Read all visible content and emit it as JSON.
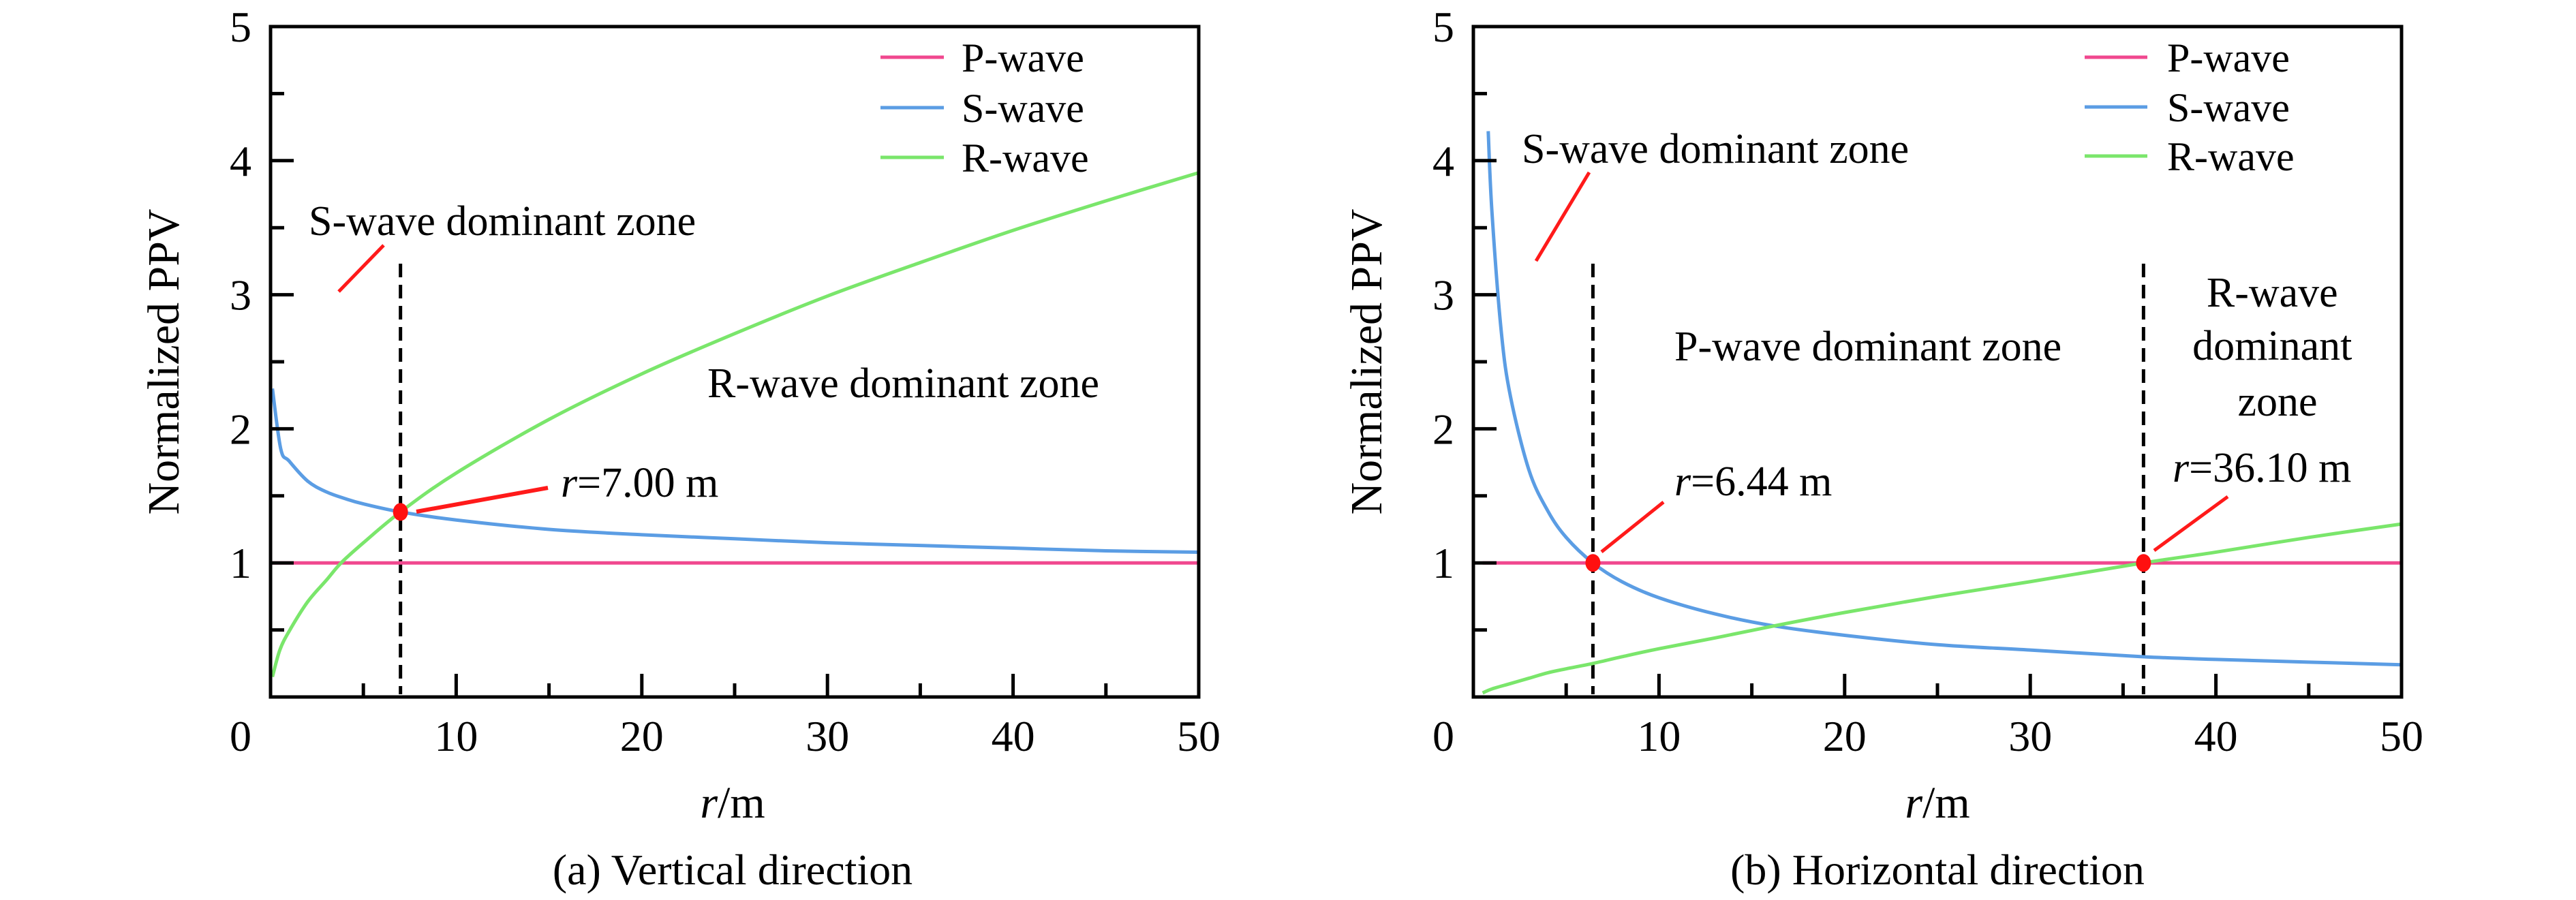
{
  "figure": {
    "caption_a": "(a) Vertical direction",
    "caption_b": "(b) Horizontal direction"
  },
  "chart_data": [
    {
      "type": "line",
      "panel": "a",
      "title": "(a) Vertical direction",
      "xlabel_italic": "r",
      "xlabel_unit": "/m",
      "ylabel": "Normalized PPV",
      "xlim": [
        0,
        50
      ],
      "ylim": [
        0,
        5
      ],
      "x_ticks": [
        "0",
        "10",
        "20",
        "30",
        "40",
        "50"
      ],
      "y_ticks": [
        "1",
        "2",
        "3",
        "4",
        "5"
      ],
      "x_tick_values": [
        0,
        10,
        20,
        30,
        40,
        50
      ],
      "y_tick_values": [
        1,
        2,
        3,
        4,
        5
      ],
      "x_minor_step": 5,
      "y_minor_step": 0.5,
      "grid": false,
      "legend_position": "top-right",
      "series": [
        {
          "name": "P-wave",
          "color": "#f0488f",
          "x": [
            0.1,
            50
          ],
          "y": [
            1.0,
            1.0
          ]
        },
        {
          "name": "S-wave",
          "color": "#5b9de4",
          "x": [
            0.1,
            0.55,
            1,
            2,
            3,
            4,
            5,
            7,
            10,
            15,
            20,
            25,
            30,
            35,
            40,
            45,
            50
          ],
          "y": [
            2.3,
            1.85,
            1.76,
            1.61,
            1.53,
            1.48,
            1.44,
            1.38,
            1.32,
            1.25,
            1.21,
            1.18,
            1.15,
            1.13,
            1.11,
            1.09,
            1.08
          ]
        },
        {
          "name": "R-wave",
          "color": "#7ae66b",
          "x": [
            0.1,
            0.5,
            1,
            2,
            3,
            3.8,
            5,
            7,
            10,
            15,
            20,
            25,
            30,
            35,
            40,
            45,
            50
          ],
          "y": [
            0.15,
            0.35,
            0.49,
            0.71,
            0.87,
            1.0,
            1.15,
            1.38,
            1.67,
            2.07,
            2.41,
            2.71,
            2.99,
            3.24,
            3.48,
            3.7,
            3.91
          ]
        }
      ],
      "markers": [
        {
          "x": 7.0,
          "y": 1.38,
          "label_italic": "r",
          "label_rest": "=7.00 m"
        }
      ],
      "vlines": [
        7.0
      ],
      "annotations": [
        {
          "text": "S-wave dominant zone"
        },
        {
          "text": "R-wave dominant zone"
        }
      ]
    },
    {
      "type": "line",
      "panel": "b",
      "title": "(b) Horizontal direction",
      "xlabel_italic": "r",
      "xlabel_unit": "/m",
      "ylabel": "Normalized PPV",
      "xlim": [
        0,
        50
      ],
      "ylim": [
        0,
        5
      ],
      "x_ticks": [
        "0",
        "10",
        "20",
        "30",
        "40",
        "50"
      ],
      "y_ticks": [
        "1",
        "2",
        "3",
        "4",
        "5"
      ],
      "x_tick_values": [
        0,
        10,
        20,
        30,
        40,
        50
      ],
      "y_tick_values": [
        1,
        2,
        3,
        4,
        5
      ],
      "x_minor_step": 5,
      "y_minor_step": 0.5,
      "grid": false,
      "legend_position": "top-right",
      "series": [
        {
          "name": "P-wave",
          "color": "#f0488f",
          "x": [
            0.5,
            50
          ],
          "y": [
            1.0,
            1.0
          ]
        },
        {
          "name": "S-wave",
          "color": "#5b9de4",
          "x": [
            0.8,
            1,
            1.5,
            2,
            3,
            4,
            5,
            6.44,
            8,
            10,
            13,
            16.2,
            20,
            25,
            30,
            36.1,
            40,
            45,
            50
          ],
          "y": [
            4.22,
            3.62,
            2.73,
            2.24,
            1.69,
            1.39,
            1.19,
            1.0,
            0.86,
            0.74,
            0.62,
            0.53,
            0.46,
            0.39,
            0.35,
            0.3,
            0.28,
            0.26,
            0.24
          ]
        },
        {
          "name": "R-wave",
          "color": "#7ae66b",
          "x": [
            0.5,
            1,
            2,
            3,
            4,
            5,
            6.44,
            8,
            10,
            13,
            16.2,
            20,
            25,
            30,
            36.1,
            40,
            45,
            50
          ],
          "y": [
            0.03,
            0.06,
            0.1,
            0.14,
            0.18,
            0.21,
            0.25,
            0.3,
            0.36,
            0.44,
            0.53,
            0.63,
            0.75,
            0.86,
            1.0,
            1.08,
            1.19,
            1.29
          ]
        }
      ],
      "markers": [
        {
          "x": 6.44,
          "y": 1.0,
          "label_italic": "r",
          "label_rest": "=6.44 m"
        },
        {
          "x": 36.1,
          "y": 1.0,
          "label_italic": "r",
          "label_rest": "=36.10 m"
        }
      ],
      "vlines": [
        6.44,
        36.1
      ],
      "annotations": [
        {
          "text": "S-wave dominant zone"
        },
        {
          "text": "P-wave dominant zone"
        },
        {
          "lines": [
            "R-wave",
            "dominant",
            "zone"
          ]
        }
      ]
    }
  ]
}
